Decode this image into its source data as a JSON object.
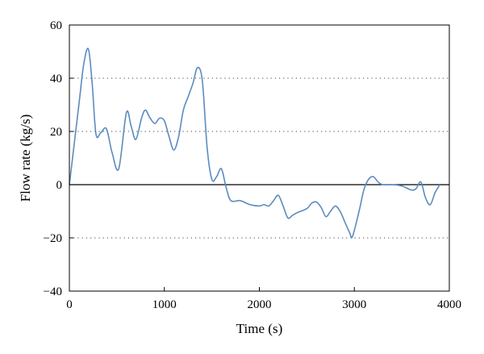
{
  "chart_data": {
    "type": "line",
    "xlabel": "Time (s)",
    "ylabel": "Flow rate (kg/s)",
    "xlim": [
      0,
      4000
    ],
    "ylim": [
      -40,
      60
    ],
    "x_ticks": [
      "0",
      "1000",
      "2000",
      "3000",
      "4000"
    ],
    "y_ticks": [
      "60",
      "40",
      "20",
      "0",
      "−20",
      "−40"
    ],
    "x_tick_values": [
      0,
      1000,
      2000,
      3000,
      4000
    ],
    "y_tick_values": [
      60,
      40,
      20,
      0,
      -20,
      -40
    ],
    "gridlines_dotted": [
      40,
      20,
      -20
    ],
    "zero_line": true,
    "line_color": "#5b8bbf",
    "series": [
      {
        "x": [
          0,
          100,
          150,
          200,
          240,
          280,
          330,
          390,
          450,
          520,
          600,
          650,
          700,
          760,
          800,
          850,
          900,
          950,
          1000,
          1050,
          1100,
          1150,
          1200,
          1250,
          1300,
          1350,
          1400,
          1450,
          1500,
          1550,
          1600,
          1650,
          1700,
          1800,
          1900,
          2000,
          2050,
          2100,
          2150,
          2200,
          2250,
          2300,
          2350,
          2400,
          2500,
          2550,
          2600,
          2650,
          2700,
          2750,
          2800,
          2850,
          2900,
          2950,
          2980,
          3050,
          3100,
          3150,
          3200,
          3250,
          3300,
          3400,
          3500,
          3600,
          3650,
          3700,
          3750,
          3800,
          3850,
          3900
        ],
        "y": [
          0,
          30,
          45,
          51,
          38,
          19,
          19.5,
          21,
          12,
          6,
          27,
          22,
          17,
          25,
          28,
          25,
          23,
          25,
          24,
          18,
          13,
          18,
          28,
          33,
          38,
          44,
          39,
          14,
          2,
          3,
          6,
          -1,
          -6,
          -6,
          -7.5,
          -8,
          -7.5,
          -8,
          -6,
          -4,
          -8,
          -12.5,
          -11.5,
          -10.5,
          -9,
          -7,
          -6.5,
          -8.5,
          -12,
          -10,
          -8,
          -10,
          -14,
          -18,
          -19.5,
          -10,
          -2,
          2,
          3,
          1,
          0,
          0,
          -0.5,
          -2,
          -1.5,
          1,
          -5,
          -7.5,
          -3,
          0
        ]
      }
    ]
  }
}
